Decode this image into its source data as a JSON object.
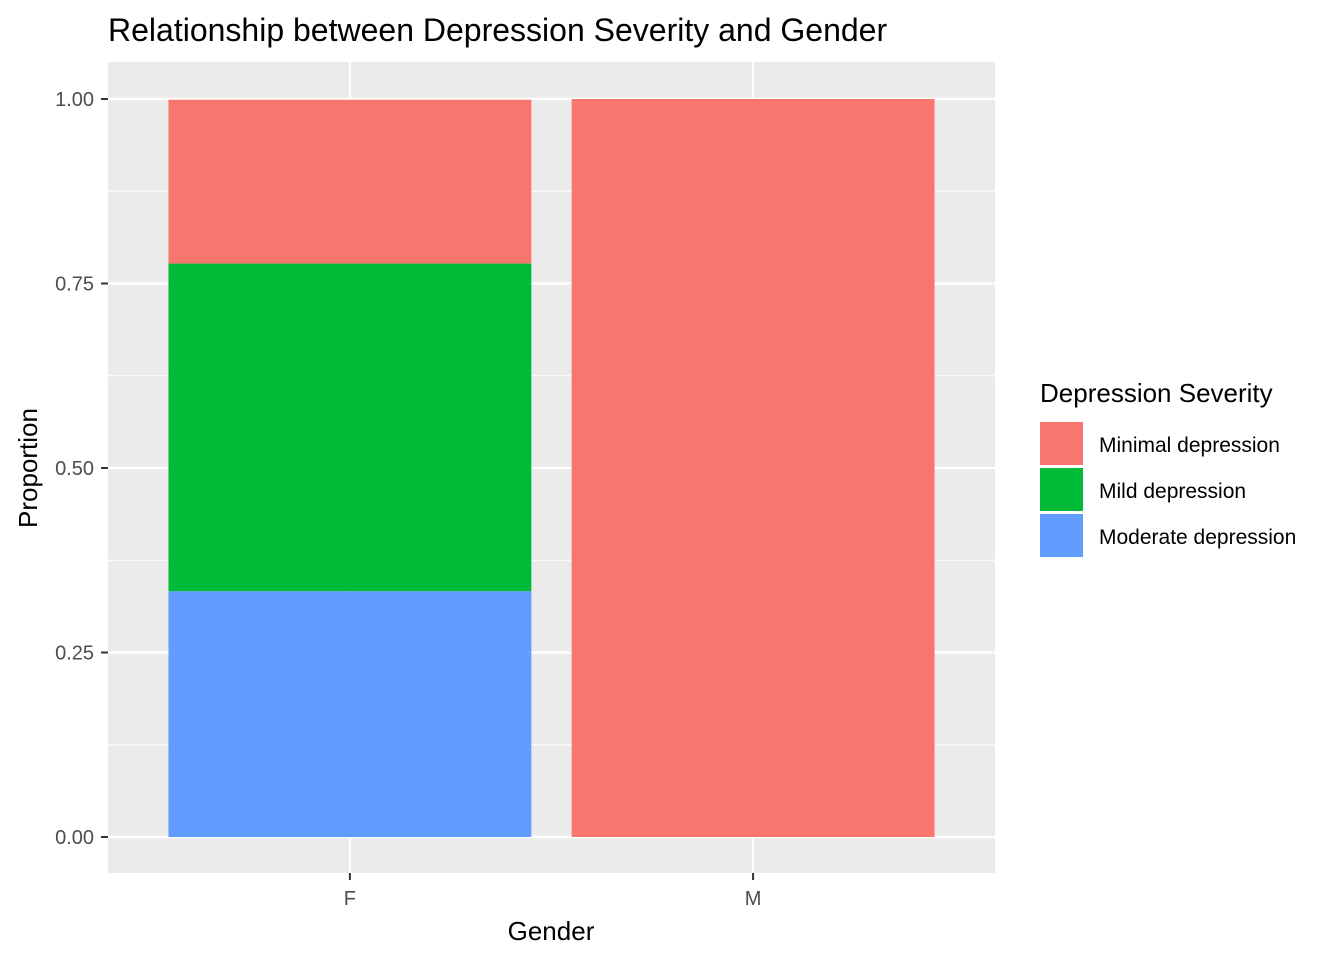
{
  "chart_data": {
    "type": "bar",
    "stacked": true,
    "title": "Relationship between Depression Severity and Gender",
    "xlabel": "Gender",
    "ylabel": "Proportion",
    "categories": [
      "F",
      "M"
    ],
    "ylim": [
      0,
      1
    ],
    "yticks": [
      "0.00",
      "0.25",
      "0.50",
      "0.75",
      "1.00"
    ],
    "grid": true,
    "legend": {
      "title": "Depression Severity",
      "position": "right"
    },
    "series": [
      {
        "name": "Minimal depression",
        "color": "#F8766D",
        "values": [
          0.222,
          1.0
        ]
      },
      {
        "name": "Mild depression",
        "color": "#00BA38",
        "values": [
          0.444,
          0.0
        ]
      },
      {
        "name": "Moderate depression",
        "color": "#619CFF",
        "values": [
          0.333,
          0.0
        ]
      }
    ],
    "stack_order_bottom_to_top": [
      "Moderate depression",
      "Mild depression",
      "Minimal depression"
    ],
    "panel_background": "#EBEBEB",
    "gridline_color": "#FFFFFF"
  }
}
